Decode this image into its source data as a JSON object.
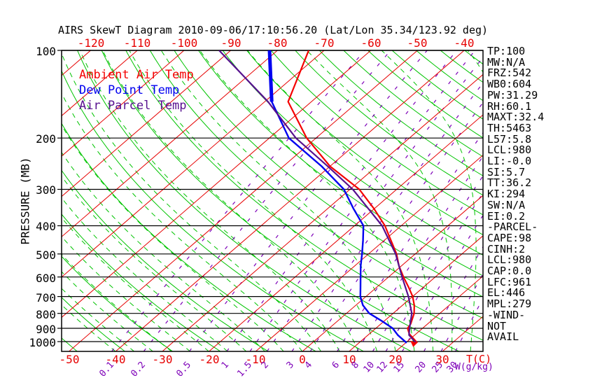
{
  "title": "AIRS SkewT Diagram 2010-09-06/17:10:56.20 (Lat/Lon 35.34/123.92 deg)",
  "legend": [
    {
      "label": "Ambient Air Temp",
      "color": "#f40000"
    },
    {
      "label": "Dew Point Temp",
      "color": "#0000f0"
    },
    {
      "label": "Air Parcel Temp",
      "color": "#57108f"
    }
  ],
  "axes": {
    "pressure_axis_label": "PRESSURE (MB)",
    "pressure_ticks": [
      100,
      200,
      300,
      400,
      500,
      600,
      700,
      800,
      900,
      1000
    ],
    "top_temp_labels": [
      -120,
      -110,
      -100,
      -90,
      -80,
      -70,
      -60,
      -50,
      -40
    ],
    "bottom_temp_labels": [
      -50,
      -40,
      -30,
      -20,
      -10,
      0,
      10,
      20,
      30
    ],
    "temp_axis_unit": "T(C)",
    "mixing_axis_unit": "W(g/kg)"
  },
  "right_panel": {
    "lines": [
      "TP:100",
      "MW:N/A",
      "FRZ:542",
      "WB0:604",
      "PW:31.29",
      "RH:60.1",
      "MAXT:32.4",
      "TH:5463",
      "L57:5.8",
      "LCL:980",
      "LI:-0.0",
      "SI:5.7",
      "TT:36.2",
      "KI:294",
      "SW:N/A",
      "EI:0.2",
      "-PARCEL-",
      "CAPE:98",
      "CINH:2",
      "LCL:980",
      "CAP:0.0",
      "LFC:961",
      "EL:446",
      "MPL:279",
      "-WIND-",
      "NOT",
      "AVAIL"
    ]
  },
  "chart_data": {
    "type": "line",
    "title": "AIRS SkewT Diagram 2010-09-06/17:10:56.20 (Lat/Lon 35.34/123.92 deg)",
    "x_axis": {
      "label": "T(C)",
      "tick_min": -120,
      "tick_max": 30,
      "tick_step": 10
    },
    "y_axis": {
      "label": "PRESSURE (MB)",
      "scale": "log",
      "top": 100,
      "bottom": 1081,
      "ticks": [
        100,
        200,
        300,
        400,
        500,
        600,
        700,
        800,
        900,
        1000
      ]
    },
    "background": {
      "isotherm_color": "#e60000",
      "isotherms_C": {
        "min": -130,
        "max": 40,
        "step": 10
      },
      "dry_adiabat_color": "#00c400",
      "dry_adiabats_theta_K": {
        "min": 220,
        "max": 520,
        "step": 10
      },
      "moist_adiabat_color": "#00c400",
      "moist_adiabats_startT_C": {
        "min": -40,
        "max": 44,
        "step": 4
      },
      "mixing_ratio_color": "#7d00b8",
      "mixing_ratio_g_kg": [
        0.1,
        0.2,
        0.5,
        1,
        1.5,
        2,
        3,
        4,
        6,
        8,
        10,
        12,
        15,
        20,
        25,
        30
      ]
    },
    "series": [
      {
        "name": "Ambient Air Temp",
        "color": "#f40000",
        "width": 2.2,
        "points_p_T": [
          [
            1010,
            22.5
          ],
          [
            940,
            18.5
          ],
          [
            900,
            16.8
          ],
          [
            870,
            16.4
          ],
          [
            800,
            14.5
          ],
          [
            750,
            12.5
          ],
          [
            700,
            10
          ],
          [
            650,
            6.8
          ],
          [
            600,
            3.2
          ],
          [
            550,
            -0.5
          ],
          [
            500,
            -4
          ],
          [
            450,
            -8.5
          ],
          [
            400,
            -13.5
          ],
          [
            350,
            -20
          ],
          [
            300,
            -28
          ],
          [
            250,
            -40
          ],
          [
            200,
            -52
          ],
          [
            150,
            -65
          ],
          [
            100,
            -73.3
          ]
        ]
      },
      {
        "name": "Dew Point Temp",
        "color": "#0000f0",
        "width": 2.4,
        "points_p_T": [
          [
            1010,
            20.2
          ],
          [
            950,
            16.4
          ],
          [
            900,
            13.6
          ],
          [
            850,
            9.5
          ],
          [
            800,
            4.9
          ],
          [
            750,
            1.5
          ],
          [
            700,
            -1.2
          ],
          [
            650,
            -3.5
          ],
          [
            600,
            -6
          ],
          [
            550,
            -8.7
          ],
          [
            500,
            -11.4
          ],
          [
            450,
            -14.5
          ],
          [
            400,
            -18.1
          ],
          [
            350,
            -24.4
          ],
          [
            300,
            -31.3
          ],
          [
            250,
            -41.8
          ],
          [
            200,
            -55.8
          ],
          [
            150,
            -68.5
          ],
          [
            100,
            -81.7
          ]
        ],
        "thick_top_segment_p_T": [
          [
            150,
            -68.5
          ],
          [
            100,
            -81.7
          ]
        ],
        "thick_width": 5
      },
      {
        "name": "Air Parcel Temp",
        "color": "#57108f",
        "width": 2.2,
        "points_p_T": [
          [
            1010,
            22.2
          ],
          [
            950,
            18.8
          ],
          [
            900,
            17.2
          ],
          [
            800,
            14.0
          ],
          [
            700,
            9.1
          ],
          [
            600,
            2.9
          ],
          [
            500,
            -4.2
          ],
          [
            400,
            -14.1
          ],
          [
            300,
            -29.4
          ],
          [
            250,
            -40.5
          ],
          [
            200,
            -54.3
          ],
          [
            150,
            -69.3
          ],
          [
            100,
            -92.5
          ]
        ]
      }
    ]
  }
}
